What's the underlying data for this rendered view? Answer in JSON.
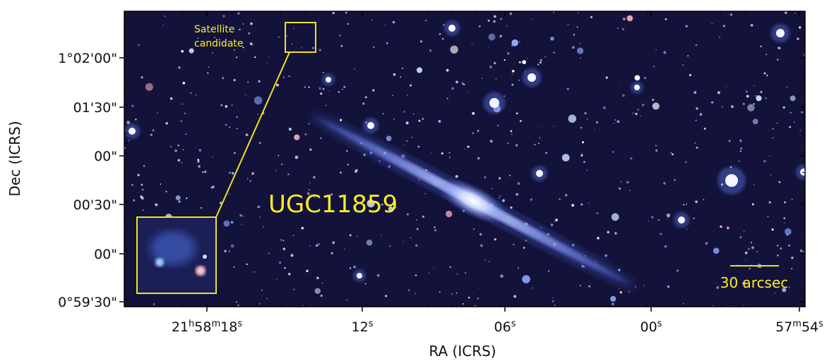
{
  "figure": {
    "x_label": "RA (ICRS)",
    "y_label": "Dec (ICRS)",
    "x_ticks": [
      [
        [
          "21",
          "h"
        ],
        [
          "58",
          "m"
        ],
        [
          "18",
          "s"
        ]
      ],
      [
        [
          "12",
          "s"
        ]
      ],
      [
        [
          "06",
          "s"
        ]
      ],
      [
        [
          "00",
          "s"
        ]
      ],
      [
        [
          "57",
          "m"
        ],
        [
          "54",
          "s"
        ]
      ]
    ],
    "y_ticks": [
      "1°02'00\"",
      "01'30\"",
      "00\"",
      "00'30\"",
      "00\"",
      "0°59'30\""
    ],
    "galaxy_label": "UGC11859",
    "satellite_label": [
      "Satellite",
      "candidate"
    ],
    "scale_bar_label": "30 arcsec"
  }
}
